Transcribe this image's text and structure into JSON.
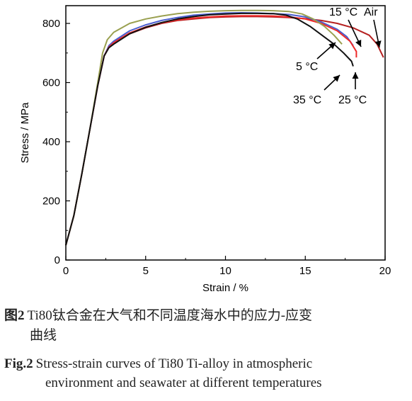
{
  "chart_data": {
    "type": "line",
    "xlabel": "Strain / %",
    "ylabel": "Stress / MPa",
    "xlim": [
      0,
      20
    ],
    "ylim": [
      0,
      860
    ],
    "x_ticks": [
      "0",
      "5",
      "10",
      "15",
      "20"
    ],
    "y_ticks": [
      "0",
      "200",
      "400",
      "600",
      "800"
    ],
    "grid": false,
    "series": [
      {
        "name": "Air",
        "color": "#b52020",
        "points": [
          [
            0,
            50
          ],
          [
            0.5,
            150
          ],
          [
            1,
            290
          ],
          [
            1.5,
            440
          ],
          [
            2,
            590
          ],
          [
            2.4,
            690
          ],
          [
            2.7,
            720
          ],
          [
            3,
            735
          ],
          [
            4,
            765
          ],
          [
            5,
            785
          ],
          [
            6,
            800
          ],
          [
            7,
            810
          ],
          [
            8,
            815
          ],
          [
            9,
            820
          ],
          [
            10,
            822
          ],
          [
            11,
            823
          ],
          [
            12,
            823
          ],
          [
            13,
            822
          ],
          [
            14,
            820
          ],
          [
            15,
            816
          ],
          [
            16,
            810
          ],
          [
            17,
            800
          ],
          [
            18,
            785
          ],
          [
            19,
            760
          ],
          [
            19.5,
            730
          ],
          [
            19.9,
            685
          ]
        ]
      },
      {
        "name": "15 °C",
        "color": "#4b5fcf",
        "points": [
          [
            0,
            50
          ],
          [
            0.5,
            150
          ],
          [
            1,
            290
          ],
          [
            1.5,
            440
          ],
          [
            2,
            590
          ],
          [
            2.4,
            690
          ],
          [
            2.7,
            725
          ],
          [
            3,
            740
          ],
          [
            4,
            775
          ],
          [
            5,
            795
          ],
          [
            6,
            810
          ],
          [
            7,
            820
          ],
          [
            8,
            828
          ],
          [
            9,
            832
          ],
          [
            10,
            835
          ],
          [
            11,
            836
          ],
          [
            12,
            835
          ],
          [
            13,
            833
          ],
          [
            14,
            830
          ],
          [
            15,
            822
          ],
          [
            16,
            805
          ],
          [
            17,
            780
          ],
          [
            17.6,
            755
          ],
          [
            18,
            725
          ]
        ]
      },
      {
        "name": "25 °C",
        "color": "#ee2a2a",
        "points": [
          [
            0,
            50
          ],
          [
            0.5,
            150
          ],
          [
            1,
            290
          ],
          [
            1.5,
            440
          ],
          [
            2,
            590
          ],
          [
            2.4,
            690
          ],
          [
            2.7,
            720
          ],
          [
            3,
            735
          ],
          [
            4,
            768
          ],
          [
            5,
            788
          ],
          [
            6,
            802
          ],
          [
            7,
            812
          ],
          [
            8,
            818
          ],
          [
            9,
            822
          ],
          [
            10,
            825
          ],
          [
            11,
            826
          ],
          [
            12,
            826
          ],
          [
            13,
            825
          ],
          [
            14,
            822
          ],
          [
            15,
            815
          ],
          [
            16,
            800
          ],
          [
            17,
            775
          ],
          [
            17.8,
            740
          ],
          [
            18.2,
            705
          ],
          [
            18.2,
            685
          ]
        ]
      },
      {
        "name": "5 °C",
        "color": "#9aa050",
        "points": [
          [
            0,
            50
          ],
          [
            0.5,
            150
          ],
          [
            1,
            290
          ],
          [
            1.5,
            440
          ],
          [
            2,
            600
          ],
          [
            2.3,
            700
          ],
          [
            2.6,
            745
          ],
          [
            3,
            770
          ],
          [
            4,
            800
          ],
          [
            5,
            815
          ],
          [
            6,
            825
          ],
          [
            7,
            833
          ],
          [
            8,
            838
          ],
          [
            9,
            841
          ],
          [
            10,
            843
          ],
          [
            11,
            844
          ],
          [
            12,
            844
          ],
          [
            13,
            843
          ],
          [
            14,
            840
          ],
          [
            14.8,
            832
          ],
          [
            15.5,
            815
          ],
          [
            16.2,
            790
          ],
          [
            16.8,
            760
          ],
          [
            17.3,
            730
          ]
        ]
      },
      {
        "name": "35 °C",
        "color": "#111111",
        "points": [
          [
            0,
            50
          ],
          [
            0.5,
            150
          ],
          [
            1,
            290
          ],
          [
            1.5,
            440
          ],
          [
            2,
            590
          ],
          [
            2.4,
            690
          ],
          [
            2.7,
            718
          ],
          [
            3,
            730
          ],
          [
            4,
            765
          ],
          [
            5,
            787
          ],
          [
            6,
            803
          ],
          [
            7,
            815
          ],
          [
            8,
            823
          ],
          [
            9,
            829
          ],
          [
            10,
            832
          ],
          [
            11,
            834
          ],
          [
            12,
            834
          ],
          [
            13,
            833
          ],
          [
            13.8,
            828
          ],
          [
            14.5,
            815
          ],
          [
            15.3,
            790
          ],
          [
            16,
            762
          ],
          [
            16.8,
            730
          ],
          [
            17.4,
            700
          ],
          [
            17.9,
            672
          ],
          [
            18,
            655
          ]
        ]
      }
    ],
    "annotations": [
      {
        "text": "15 °C",
        "target": "15 °C"
      },
      {
        "text": "Air",
        "target": "Air"
      },
      {
        "text": "5 °C",
        "target": "5 °C"
      },
      {
        "text": "35 °C",
        "target": "35 °C"
      },
      {
        "text": "25 °C",
        "target": "25 °C"
      }
    ]
  },
  "caption": {
    "zh_number": "图2",
    "zh_text": "Ti80钛合金在大气和不同温度海水中的应力-应变",
    "zh_text_line2": "曲线",
    "en_number": "Fig.2",
    "en_text": "Stress-strain curves of Ti80 Ti-alloy in atmospheric",
    "en_text_line2": "environment and seawater at different temperatures"
  }
}
